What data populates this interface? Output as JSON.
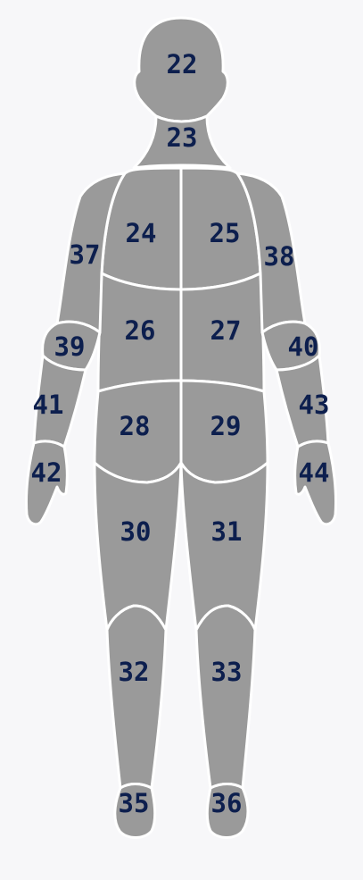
{
  "colors": {
    "background": "#f7f7f9",
    "region_fill": "#9a9a9a",
    "region_stroke": "#ffffff",
    "label": "#0d1f4e"
  },
  "zones": {
    "z22": "22",
    "z23": "23",
    "z24": "24",
    "z25": "25",
    "z26": "26",
    "z27": "27",
    "z28": "28",
    "z29": "29",
    "z30": "30",
    "z31": "31",
    "z32": "32",
    "z33": "33",
    "z35": "35",
    "z36": "36",
    "z37": "37",
    "z38": "38",
    "z39": "39",
    "z40": "40",
    "z41": "41",
    "z42": "42",
    "z43": "43",
    "z44": "44"
  }
}
